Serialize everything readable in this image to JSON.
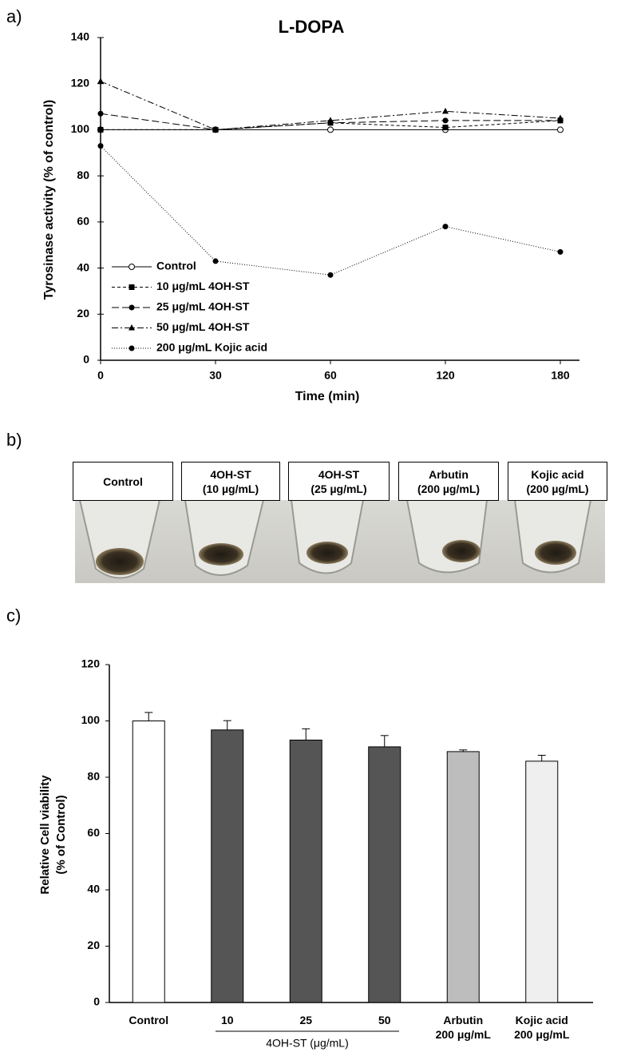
{
  "panel_labels": [
    "a)",
    "b)",
    "c)"
  ],
  "photo_labels": [
    "Control",
    "4OH-ST\n(10 µg/mL)",
    "4OH-ST\n(25 µg/mL)",
    "Arbutin\n(200 µg/mL)",
    "Kojic acid\n(200 µg/mL)"
  ],
  "chart_data": [
    {
      "type": "line",
      "title": "L-DOPA",
      "x_label": "Time (min)",
      "y_label": "Tyrosinase activity (% of control)",
      "categories": [
        "0",
        "30",
        "60",
        "120",
        "180"
      ],
      "ylim": [
        0,
        140
      ],
      "yticks": [
        0,
        20,
        40,
        60,
        80,
        100,
        120,
        140
      ],
      "legend": "lower-left",
      "series": [
        {
          "name": "Control",
          "color": "#000000",
          "dash": "none",
          "marker": "open-circle",
          "values": [
            100,
            100,
            100,
            100,
            100
          ]
        },
        {
          "name": "10 μg/mL 4OH-ST",
          "color": "#000000",
          "dash": "4,3",
          "marker": "square",
          "values": [
            100,
            100,
            103,
            101,
            104
          ]
        },
        {
          "name": "25 μg/mL 4OH-ST",
          "color": "#000000",
          "dash": "9,4",
          "marker": "circle",
          "values": [
            107,
            100,
            103,
            104,
            104
          ]
        },
        {
          "name": "50 μg/mL 4OH-ST",
          "color": "#000000",
          "dash": "8,3,2,3",
          "marker": "triangle",
          "values": [
            121,
            100,
            104,
            108,
            105
          ]
        },
        {
          "name": "200 μg/mL Kojic acid",
          "color": "#000000",
          "dash": "1,2",
          "marker": "circle",
          "values": [
            93,
            43,
            37,
            58,
            47
          ]
        }
      ]
    },
    {
      "type": "bar",
      "y_label": [
        "Relative Cell viability",
        "(% of Control)"
      ],
      "categories": [
        "Control",
        "10",
        "25",
        "50",
        "Arbutin\n200 μg/mL",
        "Kojic acid\n200 μg/mL"
      ],
      "group_label": "4OH-ST (μg/mL)",
      "values": [
        100,
        96.8,
        93.2,
        90.8,
        89.1,
        85.7
      ],
      "errors": [
        3,
        3.3,
        4,
        4,
        0.6,
        2.1
      ],
      "colors": [
        "#ffffff",
        "#555555",
        "#555555",
        "#555555",
        "#bdbdbd",
        "#efefef"
      ],
      "ylim": [
        0,
        120
      ],
      "yticks": [
        0,
        20,
        40,
        60,
        80,
        100,
        120
      ]
    }
  ]
}
